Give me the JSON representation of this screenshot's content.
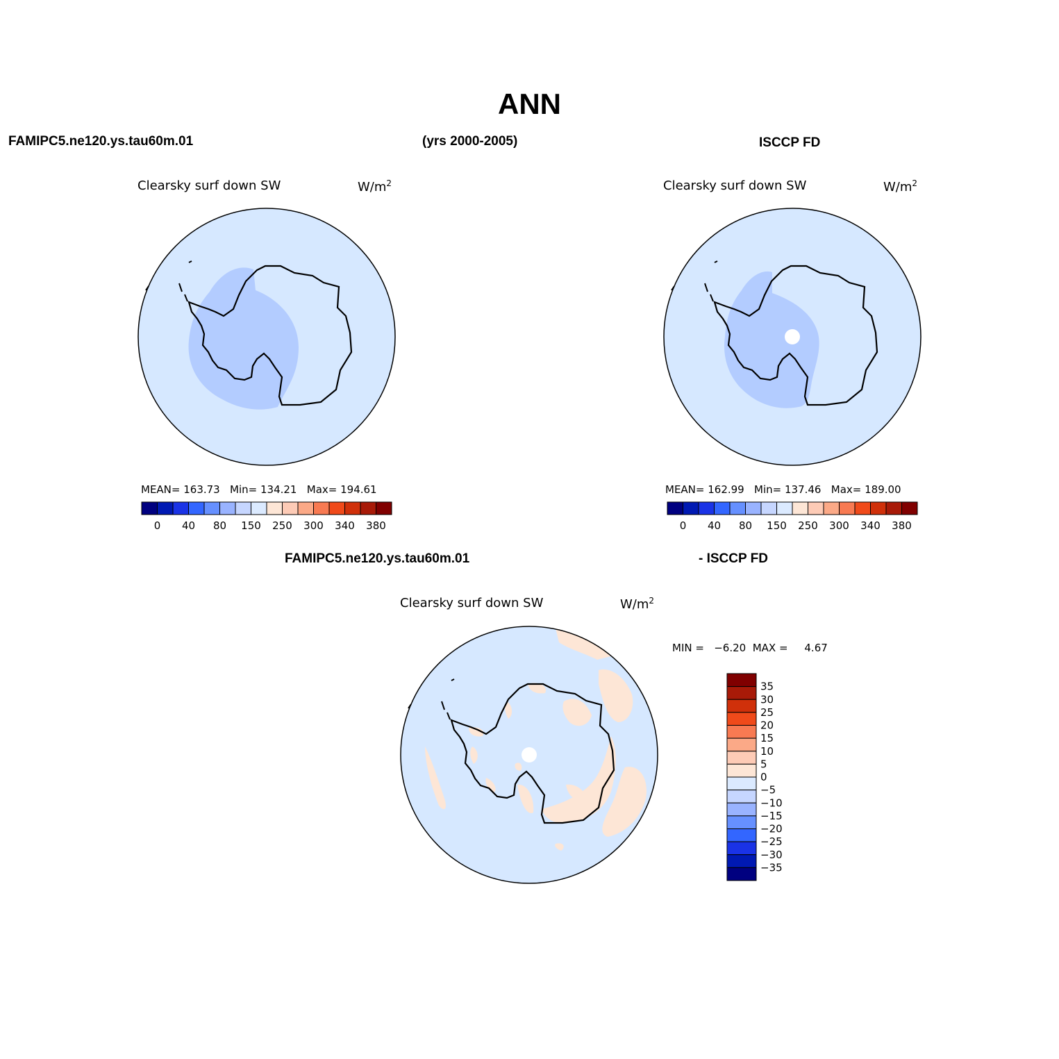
{
  "title": "ANN",
  "header": {
    "left": "FAMIPC5.ne120.ys.tau60m.01",
    "center": "(yrs 2000-2005)",
    "right": "ISCCP FD",
    "diff_left": "FAMIPC5.ne120.ys.tau60m.01",
    "diff_right": "- ISCCP FD"
  },
  "panels": [
    {
      "variable": "Clearsky surf down SW",
      "units_base": "W/m",
      "units_exp": "2",
      "stats_text": "MEAN= 163.73   Min= 134.21   Max= 194.61",
      "mean": 163.73,
      "min": 134.21,
      "max": 194.61
    },
    {
      "variable": "Clearsky surf down SW",
      "units_base": "W/m",
      "units_exp": "2",
      "stats_text": "MEAN= 162.99   Min= 137.46   Max= 189.00",
      "mean": 162.99,
      "min": 137.46,
      "max": 189.0
    },
    {
      "variable": "Clearsky surf down SW",
      "units_base": "W/m",
      "units_exp": "2",
      "stats_text": "MIN =   −6.20  MAX =     4.67",
      "min": -6.2,
      "max": 4.67
    }
  ],
  "colorbar_main": {
    "colors": [
      "#000080",
      "#0019b3",
      "#1a33e6",
      "#3366ff",
      "#6690ff",
      "#99b3ff",
      "#c6d6ff",
      "#dbeaff",
      "#fde6d6",
      "#fdcbb6",
      "#fba987",
      "#f87a52",
      "#f04a1a",
      "#d0300a",
      "#a81a08",
      "#800000"
    ],
    "labels": [
      "0",
      "40",
      "80",
      "150",
      "250",
      "300",
      "340",
      "380"
    ]
  },
  "colorbar_diff": {
    "colors": [
      "#800000",
      "#a81a08",
      "#d0300a",
      "#f04a1a",
      "#f87a52",
      "#fba987",
      "#fdcbb6",
      "#fde6d6",
      "#dbeaff",
      "#c6d6ff",
      "#99b3ff",
      "#6690ff",
      "#3366ff",
      "#1a33e6",
      "#0019b3",
      "#000080"
    ],
    "labels": [
      "35",
      "30",
      "25",
      "20",
      "15",
      "10",
      "5",
      "0",
      "−5",
      "−10",
      "−15",
      "−20",
      "−25",
      "−30",
      "−35"
    ]
  },
  "map_colors": {
    "background_level": "#d6e8ff",
    "low_level": "#b3ccff",
    "positive_diff": "#fde6d6",
    "missing": "#ffffff"
  }
}
